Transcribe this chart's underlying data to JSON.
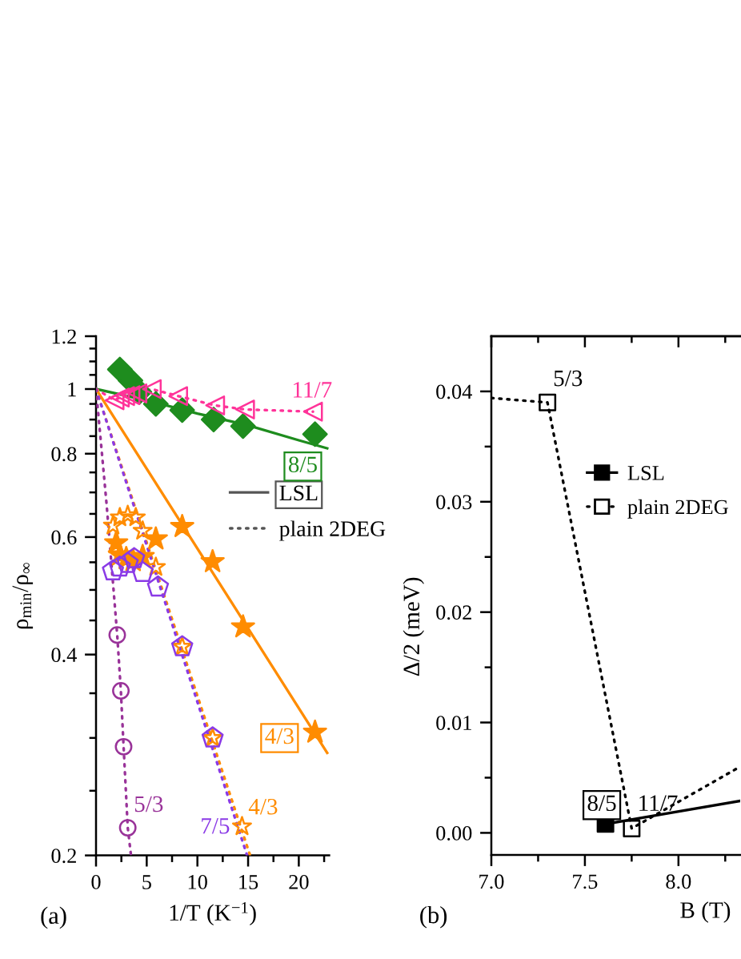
{
  "chart_data": [
    {
      "type": "scatter",
      "xlabel": "1/T (K$^{−1}$)",
      "ylabel": "ρ$_{min}$/ρ$_{∞}$",
      "log": "y",
      "xlim": [
        0,
        23
      ],
      "ylim": [
        0.2,
        1.2
      ],
      "xticks": [
        0,
        {
          "value": 2.5,
          "label": null
        },
        5,
        {
          "value": 7.5,
          "label": null
        },
        10,
        {
          "value": 12.5,
          "label": null
        },
        15,
        {
          "value": 17.5,
          "label": null
        },
        20,
        {
          "value": 22.5,
          "label": null
        }
      ],
      "yticks": [
        0.2,
        {
          "value": 0.25,
          "label": null
        },
        {
          "value": 0.3,
          "label": null
        },
        {
          "value": 0.35,
          "label": null
        },
        0.4,
        {
          "value": 0.45,
          "label": null
        },
        {
          "value": 0.5,
          "label": null
        },
        {
          "value": 0.55,
          "label": null
        },
        0.6,
        {
          "value": 0.65,
          "label": null
        },
        {
          "value": 0.7,
          "label": null
        },
        {
          "value": 0.75,
          "label": null
        },
        0.8,
        {
          "value": 0.85,
          "label": null
        },
        {
          "value": 0.9,
          "label": null
        },
        {
          "value": 0.95,
          "label": null
        },
        1,
        {
          "value": 1.05,
          "label": null
        },
        {
          "value": 1.1,
          "label": null
        },
        {
          "value": 1.15,
          "label": null
        },
        1.2
      ],
      "legend": "right",
      "series": [
        {
          "marker": "diamond",
          "line_style": "solid",
          "color": "#1e8c1e",
          "x": [
            2.35,
            3.4,
            4.28,
            5.9,
            8.5,
            11.6,
            14.5,
            21.6
          ],
          "values": [
            1.07,
            1.03,
            0.99,
            0.95,
            0.93,
            0.9,
            0.88,
            0.856
          ]
        },
        {
          "type": "line",
          "line_style": "solid",
          "color": "#1e8c1e",
          "x": [
            0,
            5,
            10,
            15,
            20,
            22.8
          ],
          "values": [
            1.0,
            0.962,
            0.919,
            0.882,
            0.838,
            0.815
          ]
        },
        {
          "marker": "triangle",
          "line_style": "dotted",
          "color": "#ff3399",
          "x": [
            1.83,
            2.35,
            2.87,
            3.4,
            4.08,
            5.5,
            8.1,
            11.75,
            14.7,
            21.4
          ],
          "values": [
            0.962,
            0.971,
            0.976,
            0.979,
            0.985,
            1.0,
            0.976,
            0.945,
            0.932,
            0.925
          ]
        },
        {
          "type": "line",
          "line_style": "dotted",
          "color": "#ff3399",
          "x": [
            0,
            1.83,
            2.35,
            2.87,
            3.4,
            4.08,
            5.5,
            8.1,
            11.75,
            14.7,
            21.4
          ],
          "values": [
            1.0,
            0.962,
            0.971,
            0.976,
            0.979,
            0.985,
            1.0,
            0.976,
            0.945,
            0.932,
            0.925
          ]
        },
        {
          "marker": "star",
          "line_style": "solid",
          "color": "#ff8c00",
          "x": [
            1.99,
            2.35,
            2.98,
            3.66,
            4.6,
            5.9,
            8.5,
            11.5,
            14.5,
            21.6
          ],
          "values": [
            0.588,
            0.564,
            0.557,
            0.553,
            0.561,
            0.596,
            0.622,
            0.551,
            0.44,
            0.306
          ]
        },
        {
          "type": "line",
          "line_style": "solid",
          "color": "#ff8c00",
          "x": [
            0,
            22.8
          ],
          "values": [
            1.0,
            0.285
          ]
        },
        {
          "marker": "star",
          "line_style": "dotted",
          "color": "#ff8c00",
          "x": [
            1.67,
            2.35,
            3.13,
            3.92,
            4.6,
            5.9,
            8.5,
            11.5,
            14.4
          ],
          "values": [
            0.624,
            0.642,
            0.647,
            0.642,
            0.613,
            0.541,
            0.411,
            0.3,
            0.221
          ]
        },
        {
          "type": "line",
          "line_style": "dotted",
          "color": "#ff8c00",
          "x": [
            0,
            15.2
          ],
          "values": [
            1.0,
            0.2
          ]
        },
        {
          "line_style": "dotted",
          "color": "#8a3ae6",
          "x": [
            1.67,
            2.35,
            3.13,
            3.76,
            4.6,
            6.11,
            8.5,
            11.5
          ],
          "values": [
            0.534,
            0.541,
            0.548,
            0.557,
            0.531,
            0.505,
            0.411,
            0.3
          ]
        },
        {
          "type": "line",
          "line_style": "dotted",
          "color": "#8a3ae6",
          "x": [
            0,
            14.9
          ],
          "values": [
            1.0,
            0.2
          ]
        },
        {
          "marker": "circle",
          "line_style": "dotted",
          "color": "#993399",
          "x": [
            2.09,
            2.45,
            2.72,
            3.13
          ],
          "values": [
            0.428,
            0.353,
            0.291,
            0.22
          ]
        },
        {
          "type": "line",
          "line_style": "dotted",
          "color": "#993399",
          "x": [
            0,
            1.05,
            2.09,
            2.45,
            2.72,
            3.13,
            3.45
          ],
          "values": [
            1.0,
            0.67,
            0.428,
            0.353,
            0.291,
            0.22,
            0.2
          ]
        },
        {
          "name": "LSL",
          "type": "line",
          "line_style": "solid",
          "color": "#555555"
        },
        {
          "name": "plain 2DEG",
          "type": "line",
          "line_style": "dotted",
          "color": "#555555"
        }
      ],
      "annotations": [
        "11/7",
        "8/5",
        "4/3",
        "5/3",
        "7/5",
        "4/3",
        "(a)"
      ]
    },
    {
      "type": "scatter",
      "xlabel": "B (T)",
      "ylabel": "Δ/2 (meV)",
      "xlim": [
        7.0,
        8.33
      ],
      "ylim": [
        -0.002,
        0.045
      ],
      "xticks": [
        {
          "value": 7.0,
          "label": "7.0"
        },
        {
          "value": 7.25,
          "label": null
        },
        {
          "value": 7.5,
          "label": "7.5"
        },
        {
          "value": 7.75,
          "label": null
        },
        {
          "value": 8.0,
          "label": "8.0"
        },
        {
          "value": 8.25,
          "label": null
        }
      ],
      "yticks": [
        {
          "value": 0.0,
          "label": "0.00"
        },
        {
          "value": 0.005,
          "label": null
        },
        {
          "value": 0.01,
          "label": "0.01"
        },
        {
          "value": 0.015,
          "label": null
        },
        {
          "value": 0.02,
          "label": "0.02"
        },
        {
          "value": 0.025,
          "label": null
        },
        {
          "value": 0.03,
          "label": "0.03"
        },
        {
          "value": 0.035,
          "label": null
        },
        {
          "value": 0.04,
          "label": "0.04"
        }
      ],
      "legend": "right",
      "series": [
        {
          "name": "LSL",
          "marker": "square",
          "line_style": "solid",
          "color": "#000000",
          "x": [
            7.61
          ],
          "values": [
            0.0008
          ]
        },
        {
          "type": "line",
          "line_style": "solid",
          "color": "#000000",
          "x": [
            7.61,
            8.33
          ],
          "values": [
            0.0008,
            0.0029
          ]
        },
        {
          "name": "plain 2DEG",
          "marker": "square",
          "line_style": "dotted",
          "color": "#000000",
          "x": [
            7.3,
            7.75
          ],
          "values": [
            0.039,
            0.0004
          ]
        },
        {
          "type": "line",
          "line_style": "dotted",
          "color": "#000000",
          "x": [
            7.0,
            7.3,
            7.75,
            8.33
          ],
          "values": [
            0.0394,
            0.039,
            0.0004,
            0.006
          ]
        }
      ],
      "annotations": [
        "5/3",
        "8/5",
        "11/7",
        "(b)"
      ]
    }
  ]
}
